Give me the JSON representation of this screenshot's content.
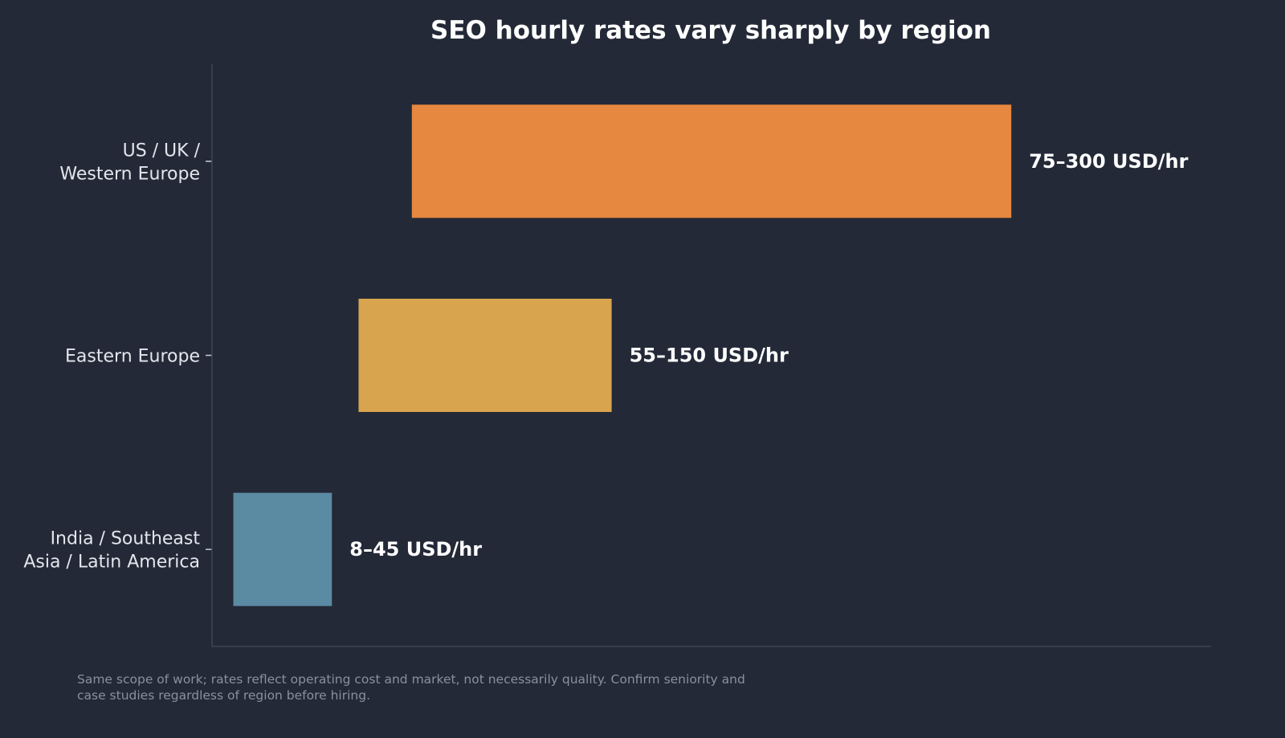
{
  "chart_data": {
    "type": "bar",
    "orientation": "horizontal",
    "title": "SEO hourly rates vary sharply by region",
    "xlabel": "",
    "ylabel": "",
    "unit": "USD/hr",
    "xlim": [
      0,
      375
    ],
    "grid": false,
    "legend": "none",
    "categories": [
      [
        "US / UK /",
        "Western Europe"
      ],
      [
        "Eastern Europe"
      ],
      [
        "India / Southeast",
        "Asia / Latin America"
      ]
    ],
    "ranges": [
      {
        "low": 75,
        "high": 300,
        "label": "75–300 USD/hr",
        "color": "#e6883f"
      },
      {
        "low": 55,
        "high": 150,
        "label": "55–150 USD/hr",
        "color": "#d9a44e"
      },
      {
        "low": 8,
        "high": 45,
        "label": "8–45 USD/hr",
        "color": "#5b8aa3"
      }
    ]
  },
  "footnote": "Same scope of work; rates reflect operating cost and market, not necessarily quality. Confirm seniority and case studies regardless of region before hiring.",
  "colors": {
    "background": "#232937",
    "axis": "#3d4557"
  }
}
